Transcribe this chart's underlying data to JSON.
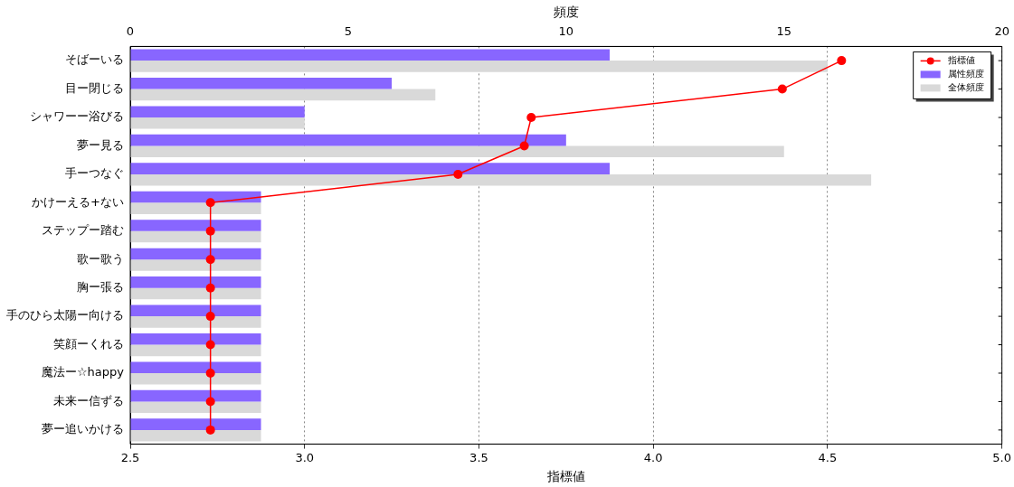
{
  "chart_data": {
    "type": "bar",
    "orientation": "horizontal",
    "xlabel": "指標値",
    "x2label": "頻度",
    "categories": [
      "そばーいる",
      "目ー閉じる",
      "シャワーー浴びる",
      "夢ー見る",
      "手ーつなぐ",
      "かけーえる+ない",
      "ステップー踏む",
      "歌ー歌う",
      "胸ー張る",
      "手のひら太陽ー向ける",
      "笑顔ーくれる",
      "魔法ー☆happy",
      "未来ー信ずる",
      "夢ー追いかける"
    ],
    "series": [
      {
        "name": "指標値",
        "type": "line",
        "color": "#ff0000",
        "values": [
          4.54,
          4.37,
          3.65,
          3.63,
          3.44,
          2.73,
          2.73,
          2.73,
          2.73,
          2.73,
          2.73,
          2.73,
          2.73,
          2.73
        ]
      },
      {
        "name": "属性頻度",
        "axis": "x2",
        "color": "#8866ff",
        "values": [
          11,
          6,
          4,
          10,
          11,
          3,
          3,
          3,
          3,
          3,
          3,
          3,
          3,
          3
        ]
      },
      {
        "name": "全体頻度",
        "axis": "x2",
        "color": "#d9d9d9",
        "values": [
          16,
          7,
          4,
          15,
          17,
          3,
          3,
          3,
          3,
          3,
          3,
          3,
          3,
          3
        ]
      }
    ],
    "xlim": [
      2.5,
      5.0
    ],
    "xticks": [
      {
        "value": 2.5,
        "label": "2.5"
      },
      {
        "value": 3.0,
        "label": "3.0"
      },
      {
        "value": 3.5,
        "label": "3.5"
      },
      {
        "value": 4.0,
        "label": "4.0"
      },
      {
        "value": 4.5,
        "label": "4.5"
      },
      {
        "value": 5.0,
        "label": "5.0"
      }
    ],
    "x2lim": [
      0,
      20
    ],
    "x2ticks": [
      0,
      5,
      10,
      15,
      20
    ],
    "grid": "x",
    "legend": "top right",
    "marker": "circle",
    "line_style": "solid"
  }
}
